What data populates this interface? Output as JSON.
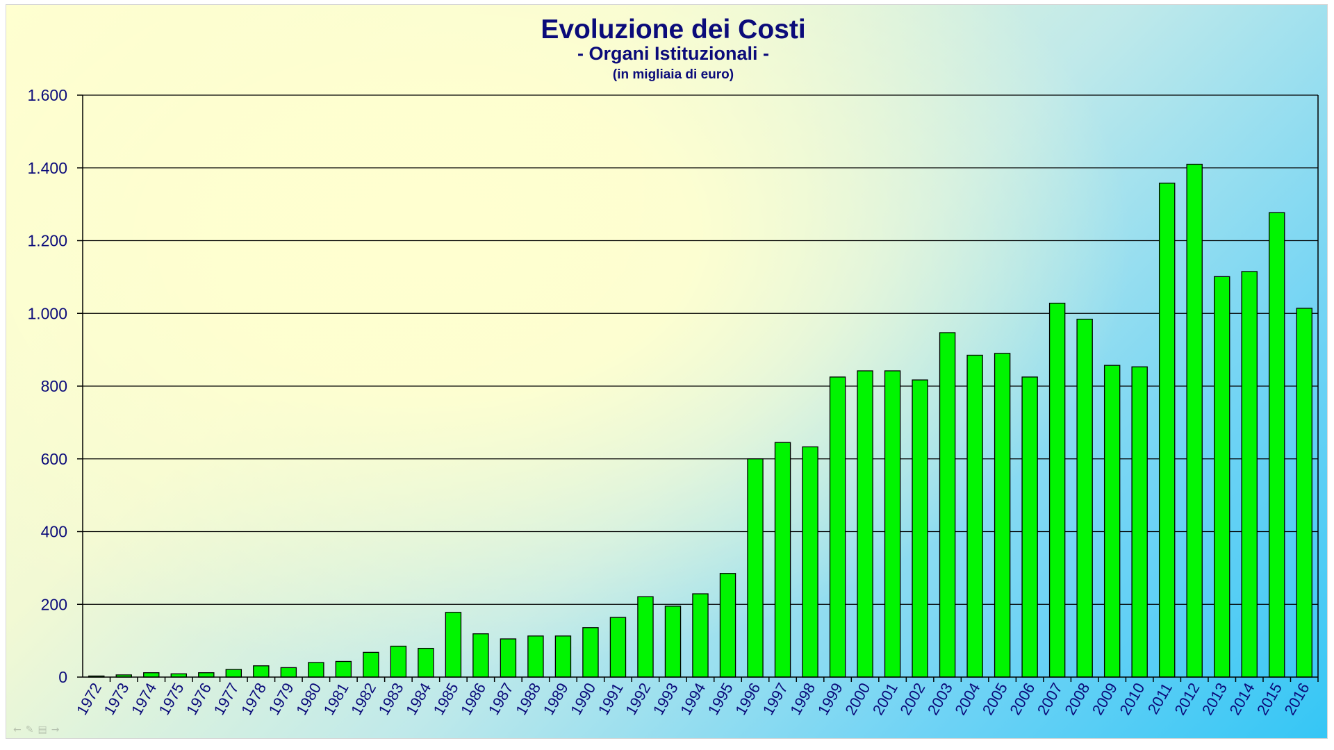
{
  "chart_data": {
    "type": "bar",
    "title": "Evoluzione dei Costi",
    "subtitle": "- Organi Istituzionali -",
    "unit_note": "(in migliaia di euro)",
    "xlabel": "",
    "ylabel": "",
    "ylim": [
      0,
      1600
    ],
    "yticks": [
      0,
      200,
      400,
      600,
      800,
      1000,
      1200,
      1400,
      1600
    ],
    "ytick_labels": [
      "0",
      "200",
      "400",
      "600",
      "800",
      "1.000",
      "1.200",
      "1.400",
      "1.600"
    ],
    "grid": true,
    "legend": "none",
    "categories": [
      "1972",
      "1973",
      "1974",
      "1975",
      "1976",
      "1977",
      "1978",
      "1979",
      "1980",
      "1981",
      "1982",
      "1983",
      "1984",
      "1985",
      "1986",
      "1987",
      "1988",
      "1989",
      "1990",
      "1991",
      "1992",
      "1993",
      "1994",
      "1995",
      "1996",
      "1997",
      "1998",
      "1999",
      "2000",
      "2001",
      "2002",
      "2003",
      "2004",
      "2005",
      "2006",
      "2007",
      "2008",
      "2009",
      "2010",
      "2011",
      "2012",
      "2013",
      "2014",
      "2015",
      "2016"
    ],
    "values": [
      3,
      6,
      12,
      9,
      12,
      21,
      31,
      26,
      40,
      43,
      68,
      85,
      79,
      178,
      119,
      105,
      113,
      113,
      136,
      164,
      221,
      195,
      229,
      285,
      600,
      645,
      633,
      825,
      842,
      842,
      817,
      947,
      885,
      890,
      825,
      1028,
      984,
      857,
      853,
      1358,
      1410,
      1101,
      1115,
      1277,
      1014
    ],
    "colors": {
      "bar_fill": "#00f500",
      "bar_stroke": "#000000",
      "text": "#0b0b7a"
    }
  },
  "slide_controls": {
    "icons": [
      "prev-arrow-icon",
      "pen-icon",
      "menu-icon",
      "next-arrow-icon"
    ]
  }
}
